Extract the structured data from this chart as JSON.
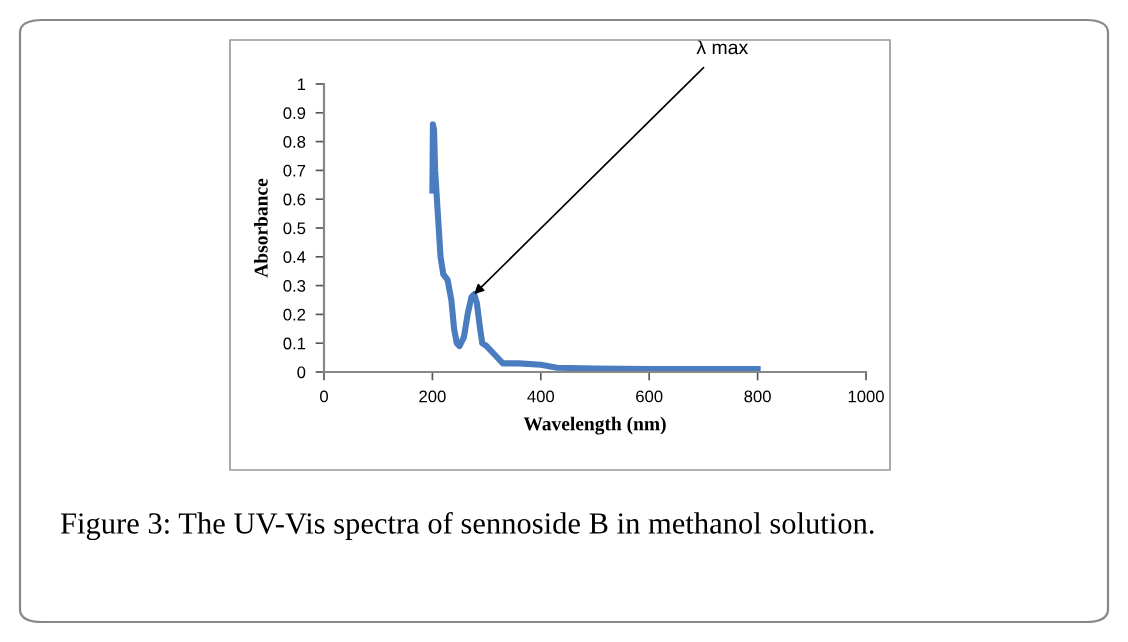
{
  "chart_data": {
    "type": "line",
    "xlabel": "Wavelength (nm)",
    "ylabel": "Absorbance",
    "series": [
      {
        "color": "#4a7cc0",
        "x": [
          200,
          201,
          203,
          205,
          210,
          215,
          220,
          228,
          235,
          240,
          245,
          250,
          258,
          265,
          272,
          277,
          282,
          288,
          292,
          300,
          315,
          330,
          360,
          400,
          430,
          500,
          600,
          700,
          800
        ],
        "values": [
          0.63,
          0.86,
          0.84,
          0.7,
          0.55,
          0.4,
          0.34,
          0.32,
          0.25,
          0.15,
          0.1,
          0.09,
          0.12,
          0.2,
          0.26,
          0.27,
          0.24,
          0.15,
          0.1,
          0.09,
          0.06,
          0.03,
          0.03,
          0.025,
          0.015,
          0.012,
          0.01,
          0.01,
          0.01
        ]
      }
    ],
    "xlim": [
      0,
      1000
    ],
    "xticks": [
      0,
      200,
      400,
      600,
      800,
      1000
    ],
    "ylim": [
      0,
      1
    ],
    "yticks": [
      0,
      0.1,
      0.2,
      0.3,
      0.4,
      0.5,
      0.6,
      0.7,
      0.8,
      0.9,
      1
    ],
    "grid": false,
    "legend": false,
    "marker": "none",
    "line_style": "solid",
    "annotations": [
      {
        "text": "λ max",
        "x": 277,
        "y": 0.27
      },
      "Figure 3: The UV-Vis spectra of sennoside B in methanol solution."
    ]
  }
}
